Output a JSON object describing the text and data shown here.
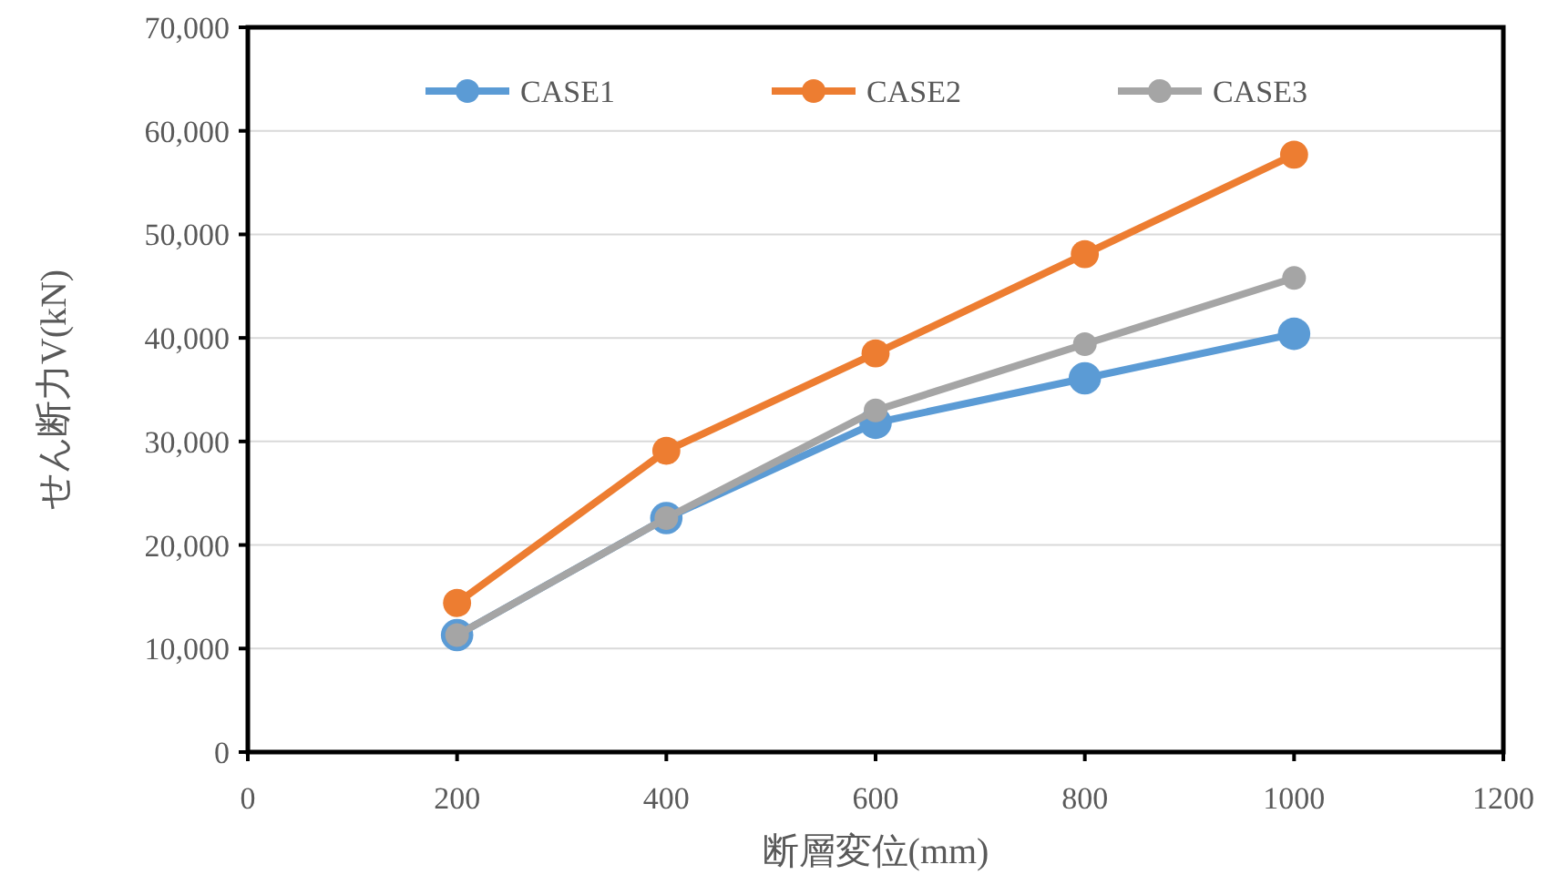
{
  "chart_data": {
    "type": "line",
    "xlabel": "断層変位(mm)",
    "ylabel": "せん断力V(kN)",
    "x": [
      200,
      400,
      600,
      800,
      1000
    ],
    "series": [
      {
        "name": "CASE1",
        "color": "#5b9bd5",
        "values": [
          11300,
          22600,
          31800,
          36100,
          40400
        ]
      },
      {
        "name": "CASE2",
        "color": "#ed7d31",
        "values": [
          14400,
          29100,
          38500,
          48100,
          57700
        ]
      },
      {
        "name": "CASE3",
        "color": "#a5a5a5",
        "values": [
          11300,
          22600,
          33000,
          39400,
          45800
        ]
      }
    ],
    "xlim": [
      0,
      1200
    ],
    "xticks": [
      0,
      200,
      400,
      600,
      800,
      1000,
      1200
    ],
    "ylim": [
      0,
      70000
    ],
    "yticks": [
      0,
      {
        "value": 10000,
        "label": "10,000"
      },
      {
        "value": 20000,
        "label": "20,000"
      },
      {
        "value": 30000,
        "label": "30,000"
      },
      {
        "value": 40000,
        "label": "40,000"
      },
      {
        "value": 50000,
        "label": "50,000"
      },
      {
        "value": 60000,
        "label": "60,000"
      },
      {
        "value": 70000,
        "label": "70,000"
      }
    ],
    "grid": "y",
    "legend": "top",
    "marker": "circle",
    "line_style": "solid"
  }
}
